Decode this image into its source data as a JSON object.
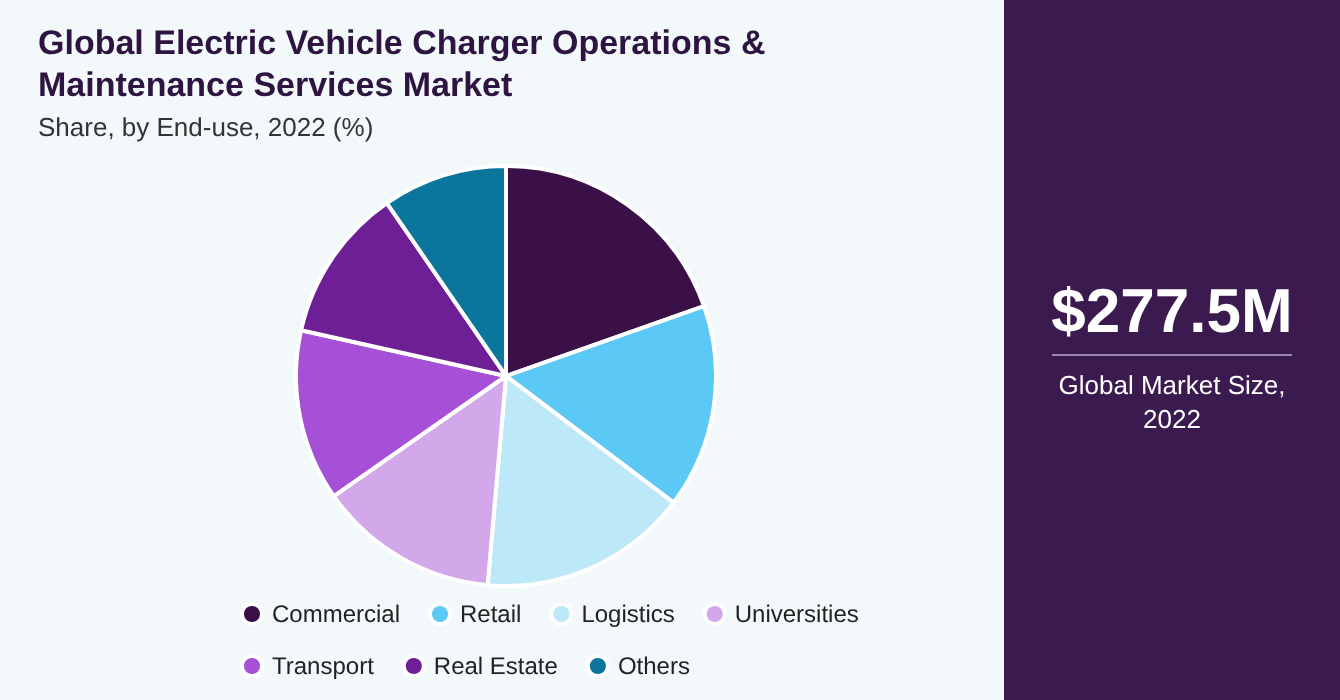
{
  "chart_data": [
    {
      "type": "pie",
      "title": "Global Electric Vehicle Charger Operations & Maintenance Services Market",
      "subtitle": "Share, by End-use, 2022 (%)",
      "legend": "bottom",
      "categories": [
        "Commercial",
        "Retail",
        "Logistics",
        "Universities",
        "Transport",
        "Real Estate",
        "Others"
      ],
      "values": [
        19.6,
        15.7,
        16.1,
        13.9,
        13.2,
        11.9,
        9.6
      ],
      "colors": [
        "#3b1048",
        "#5bc8f5",
        "#bde8f7",
        "#d3a8ea",
        "#a550d6",
        "#6e1f96",
        "#0b769c"
      ]
    },
    {
      "type": "other",
      "title": "$277.5M",
      "subtitle": "Global Market Size, 2022"
    }
  ]
}
